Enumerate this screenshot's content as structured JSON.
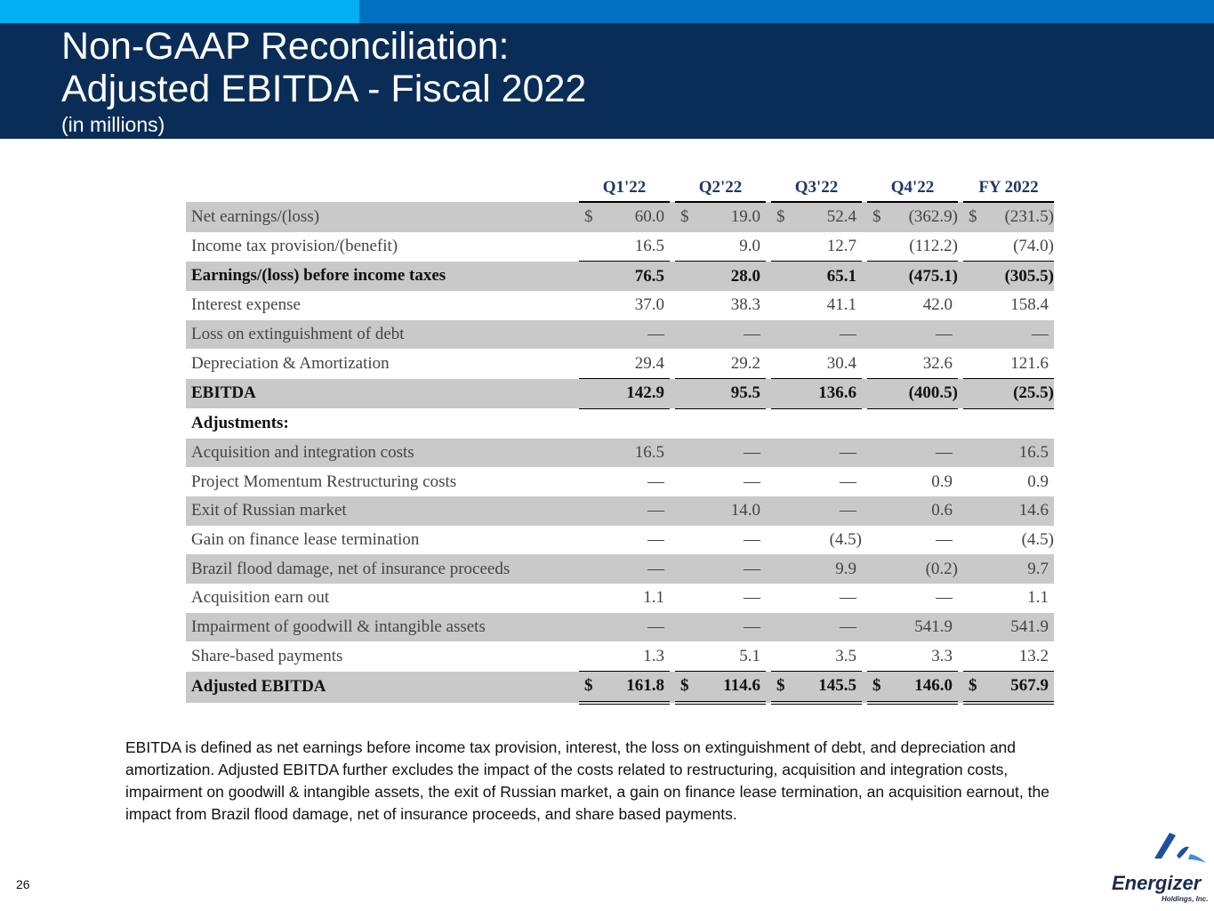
{
  "slide": {
    "title_line1": "Non-GAAP Reconciliation:",
    "title_line2": "Adjusted EBITDA - Fiscal 2022",
    "subtitle": "(in millions)",
    "page_number": "26"
  },
  "table": {
    "columns": [
      "Q1'22",
      "Q2'22",
      "Q3'22",
      "Q4'22",
      "FY 2022"
    ],
    "rows": {
      "net_earnings": {
        "label": "Net earnings/(loss)",
        "values": [
          "60.0",
          "19.0",
          "52.4",
          "(362.9)",
          "(231.5)"
        ]
      },
      "income_tax": {
        "label": "Income tax provision/(benefit)",
        "values": [
          "16.5",
          "9.0",
          "12.7",
          "(112.2)",
          "(74.0)"
        ]
      },
      "ebt": {
        "label": "Earnings/(loss) before income taxes",
        "values": [
          "76.5",
          "28.0",
          "65.1",
          "(475.1)",
          "(305.5)"
        ]
      },
      "interest": {
        "label": "Interest expense",
        "values": [
          "37.0",
          "38.3",
          "41.1",
          "42.0",
          "158.4"
        ]
      },
      "loss_debt": {
        "label": "Loss on extinguishment of debt",
        "values": [
          "—",
          "—",
          "—",
          "—",
          "—"
        ]
      },
      "dep_amort": {
        "label": "Depreciation & Amortization",
        "values": [
          "29.4",
          "29.2",
          "30.4",
          "32.6",
          "121.6"
        ]
      },
      "ebitda": {
        "label": "EBITDA",
        "values": [
          "142.9",
          "95.5",
          "136.6",
          "(400.5)",
          "(25.5)"
        ]
      },
      "adjustments": {
        "label": "Adjustments:"
      },
      "acq_integration": {
        "label": "Acquisition and integration costs",
        "values": [
          "16.5",
          "—",
          "—",
          "—",
          "16.5"
        ]
      },
      "project_momentum": {
        "label": "Project Momentum Restructuring costs",
        "values": [
          "—",
          "—",
          "—",
          "0.9",
          "0.9"
        ]
      },
      "exit_russia": {
        "label": "Exit of Russian market",
        "values": [
          "—",
          "14.0",
          "—",
          "0.6",
          "14.6"
        ]
      },
      "gain_lease": {
        "label": "Gain on finance lease termination",
        "values": [
          "—",
          "—",
          "(4.5)",
          "—",
          "(4.5)"
        ]
      },
      "brazil_flood": {
        "label": "Brazil flood damage, net of insurance proceeds",
        "values": [
          "—",
          "—",
          "9.9",
          "(0.2)",
          "9.7"
        ]
      },
      "earn_out": {
        "label": "Acquisition earn out",
        "values": [
          "1.1",
          "—",
          "—",
          "—",
          "1.1"
        ]
      },
      "impairment": {
        "label": "Impairment of goodwill & intangible assets",
        "values": [
          "—",
          "—",
          "—",
          "541.9",
          "541.9"
        ]
      },
      "share_based": {
        "label": "Share-based payments",
        "values": [
          "1.3",
          "5.1",
          "3.5",
          "3.3",
          "13.2"
        ]
      },
      "adj_ebitda": {
        "label": "Adjusted EBITDA",
        "values": [
          "161.8",
          "114.6",
          "145.5",
          "146.0",
          "567.9"
        ]
      }
    },
    "currency_symbol": "$"
  },
  "footnote": "EBITDA is defined as net earnings before income tax provision, interest, the loss on extinguishment of debt, and depreciation and amortization. Adjusted EBITDA further excludes the impact of the costs related to restructuring, acquisition and integration costs, impairment on goodwill & intangible assets, the exit of Russian market, a gain on finance lease termination, an acquisition earnout, the impact from Brazil flood damage, net of insurance proceeds, and share based payments.",
  "logo": {
    "wordmark": "Energizer",
    "tagline": "Holdings, Inc."
  },
  "colors": {
    "header_bg": "#0a2d57",
    "topbar": "#0070c0",
    "topbar_accent": "#00b0f0",
    "row_shade": "#c9c9c9"
  }
}
